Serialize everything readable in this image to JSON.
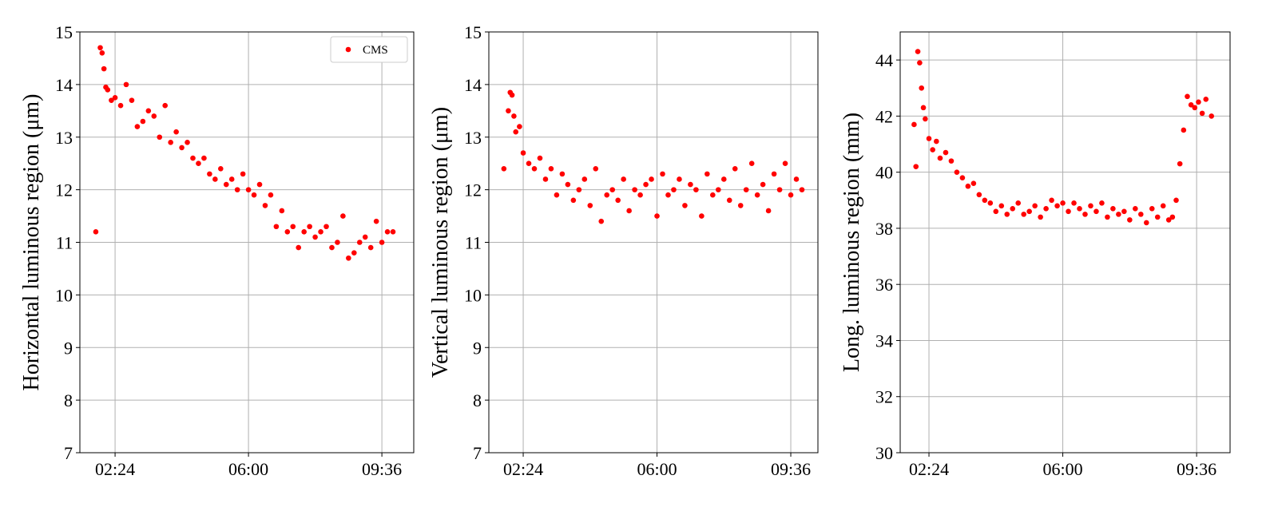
{
  "chart_data": [
    {
      "type": "scatter",
      "ylabel": "Horizontal luminous region (μm)",
      "grid": true,
      "legend": "upper right",
      "xlim": [
        1.45,
        10.46
      ],
      "xticks": [
        {
          "value": 2.4,
          "label": "02:24"
        },
        {
          "value": 6.0,
          "label": "06:00"
        },
        {
          "value": 9.6,
          "label": "09:36"
        }
      ],
      "ylim": [
        7,
        15
      ],
      "yticks": [
        7,
        8,
        9,
        10,
        11,
        12,
        13,
        14,
        15
      ],
      "x": [
        1.88,
        2.0,
        2.05,
        2.1,
        2.15,
        2.2,
        2.3,
        2.4,
        2.55,
        2.7,
        2.85,
        3.0,
        3.15,
        3.3,
        3.45,
        3.6,
        3.75,
        3.9,
        4.05,
        4.2,
        4.35,
        4.5,
        4.65,
        4.8,
        4.95,
        5.1,
        5.25,
        5.4,
        5.55,
        5.7,
        5.85,
        6.0,
        6.15,
        6.3,
        6.45,
        6.6,
        6.75,
        6.9,
        7.05,
        7.2,
        7.35,
        7.5,
        7.65,
        7.8,
        7.95,
        8.1,
        8.25,
        8.4,
        8.55,
        8.7,
        8.85,
        9.0,
        9.15,
        9.3,
        9.45,
        9.6,
        9.75,
        9.9
      ],
      "series": [
        {
          "name": "CMS",
          "color": "#ff0000",
          "values": [
            11.2,
            14.7,
            14.6,
            14.3,
            13.95,
            13.9,
            13.7,
            13.75,
            13.6,
            14.0,
            13.7,
            13.2,
            13.3,
            13.5,
            13.4,
            13.0,
            13.6,
            12.9,
            13.1,
            12.8,
            12.9,
            12.6,
            12.5,
            12.6,
            12.3,
            12.2,
            12.4,
            12.1,
            12.2,
            12.0,
            12.3,
            12.0,
            11.9,
            12.1,
            11.7,
            11.9,
            11.3,
            11.6,
            11.2,
            11.3,
            10.9,
            11.2,
            11.3,
            11.1,
            11.2,
            11.3,
            10.9,
            11.0,
            11.5,
            10.7,
            10.8,
            11.0,
            11.1,
            10.9,
            11.4,
            11.0,
            11.2,
            11.2
          ]
        }
      ]
    },
    {
      "type": "scatter",
      "ylabel": "Vertical luminous region (μm)",
      "grid": true,
      "xlim": [
        1.475,
        10.33
      ],
      "xticks": [
        {
          "value": 2.4,
          "label": "02:24"
        },
        {
          "value": 6.0,
          "label": "06:00"
        },
        {
          "value": 9.6,
          "label": "09:36"
        }
      ],
      "ylim": [
        7,
        15
      ],
      "yticks": [
        7,
        8,
        9,
        10,
        11,
        12,
        13,
        14,
        15
      ],
      "x": [
        1.88,
        2.0,
        2.05,
        2.1,
        2.15,
        2.2,
        2.3,
        2.4,
        2.55,
        2.7,
        2.85,
        3.0,
        3.15,
        3.3,
        3.45,
        3.6,
        3.75,
        3.9,
        4.05,
        4.2,
        4.35,
        4.5,
        4.65,
        4.8,
        4.95,
        5.1,
        5.25,
        5.4,
        5.55,
        5.7,
        5.85,
        6.0,
        6.15,
        6.3,
        6.45,
        6.6,
        6.75,
        6.9,
        7.05,
        7.2,
        7.35,
        7.5,
        7.65,
        7.8,
        7.95,
        8.1,
        8.25,
        8.4,
        8.55,
        8.7,
        8.85,
        9.0,
        9.15,
        9.3,
        9.45,
        9.6,
        9.75,
        9.9
      ],
      "series": [
        {
          "color": "#ff0000",
          "values": [
            12.4,
            13.5,
            13.85,
            13.8,
            13.4,
            13.1,
            13.2,
            12.7,
            12.5,
            12.4,
            12.6,
            12.2,
            12.4,
            11.9,
            12.3,
            12.1,
            11.8,
            12.0,
            12.2,
            11.7,
            12.4,
            11.4,
            11.9,
            12.0,
            11.8,
            12.2,
            11.6,
            12.0,
            11.9,
            12.1,
            12.2,
            11.5,
            12.3,
            11.9,
            12.0,
            12.2,
            11.7,
            12.1,
            12.0,
            11.5,
            12.3,
            11.9,
            12.0,
            12.2,
            11.8,
            12.4,
            11.7,
            12.0,
            12.5,
            11.9,
            12.1,
            11.6,
            12.3,
            12.0,
            12.5,
            11.9,
            12.2,
            12.0
          ]
        }
      ]
    },
    {
      "type": "scatter",
      "ylabel": "Long. luminous region (mm)",
      "grid": true,
      "xlim": [
        1.626,
        10.5
      ],
      "xticks": [
        {
          "value": 2.4,
          "label": "02:24"
        },
        {
          "value": 6.0,
          "label": "06:00"
        },
        {
          "value": 9.6,
          "label": "09:36"
        }
      ],
      "ylim": [
        30,
        45
      ],
      "yticks": [
        30,
        32,
        34,
        36,
        38,
        40,
        42,
        44
      ],
      "x": [
        2.0,
        2.05,
        2.1,
        2.15,
        2.2,
        2.25,
        2.3,
        2.4,
        2.5,
        2.6,
        2.7,
        2.85,
        3.0,
        3.15,
        3.3,
        3.45,
        3.6,
        3.75,
        3.9,
        4.05,
        4.2,
        4.35,
        4.5,
        4.65,
        4.8,
        4.95,
        5.1,
        5.25,
        5.4,
        5.55,
        5.7,
        5.85,
        6.0,
        6.15,
        6.3,
        6.45,
        6.6,
        6.75,
        6.9,
        7.05,
        7.2,
        7.35,
        7.5,
        7.65,
        7.8,
        7.95,
        8.1,
        8.25,
        8.4,
        8.55,
        8.7,
        8.85,
        8.95,
        9.05,
        9.15,
        9.25,
        9.35,
        9.45,
        9.55,
        9.65,
        9.75,
        9.85,
        10.0
      ],
      "series": [
        {
          "color": "#ff0000",
          "values": [
            41.7,
            40.2,
            44.3,
            43.9,
            43.0,
            42.3,
            41.9,
            41.2,
            40.8,
            41.1,
            40.5,
            40.7,
            40.4,
            40.0,
            39.8,
            39.5,
            39.6,
            39.2,
            39.0,
            38.9,
            38.6,
            38.8,
            38.5,
            38.7,
            38.9,
            38.5,
            38.6,
            38.8,
            38.4,
            38.7,
            39.0,
            38.8,
            38.9,
            38.6,
            38.9,
            38.7,
            38.5,
            38.8,
            38.6,
            38.9,
            38.4,
            38.7,
            38.5,
            38.6,
            38.3,
            38.7,
            38.5,
            38.2,
            38.7,
            38.4,
            38.8,
            38.3,
            38.4,
            39.0,
            40.3,
            41.5,
            42.7,
            42.4,
            42.3,
            42.5,
            42.1,
            42.6,
            42.0
          ]
        }
      ]
    }
  ]
}
